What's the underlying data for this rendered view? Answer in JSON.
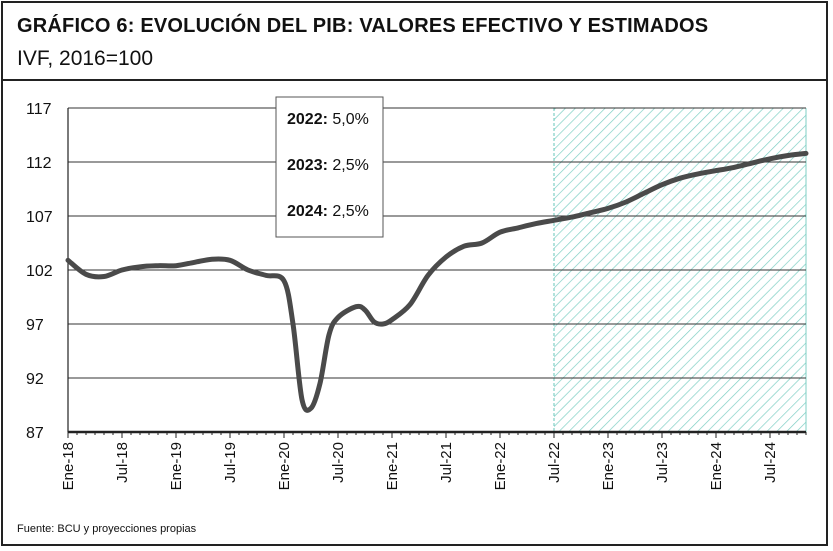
{
  "header": {
    "title": "GRÁFICO 6: EVOLUCIÓN DEL PIB: VALORES EFECTIVO Y ESTIMADOS",
    "subtitle": "IVF, 2016=100"
  },
  "footer": {
    "source": "Fuente: BCU y proyecciones propias"
  },
  "annotations": [
    {
      "year": "2022:",
      "value": "5,0%"
    },
    {
      "year": "2023:",
      "value": "2,5%"
    },
    {
      "year": "2024:",
      "value": "2,5%"
    }
  ],
  "colors": {
    "line": "#4a4a4a",
    "hatch": "#7fcfc4",
    "grid": "#333333"
  },
  "chart_data": {
    "type": "line",
    "title": "",
    "xlabel": "",
    "ylabel": "",
    "ylim": [
      87,
      117
    ],
    "yticks": [
      87,
      92,
      97,
      102,
      107,
      112,
      117
    ],
    "xlim": [
      0,
      82
    ],
    "xticks": [
      {
        "pos": 0,
        "label": "Ene-18"
      },
      {
        "pos": 6,
        "label": "Jul-18"
      },
      {
        "pos": 12,
        "label": "Ene-19"
      },
      {
        "pos": 18,
        "label": "Jul-19"
      },
      {
        "pos": 24,
        "label": "Ene-20"
      },
      {
        "pos": 30,
        "label": "Jul-20"
      },
      {
        "pos": 36,
        "label": "Ene-21"
      },
      {
        "pos": 42,
        "label": "Jul-21"
      },
      {
        "pos": 48,
        "label": "Ene-22"
      },
      {
        "pos": 54,
        "label": "Jul-22"
      },
      {
        "pos": 60,
        "label": "Ene-23"
      },
      {
        "pos": 66,
        "label": "Jul-23"
      },
      {
        "pos": 72,
        "label": "Ene-24"
      },
      {
        "pos": 78,
        "label": "Jul-24"
      }
    ],
    "forecast_start": 54,
    "series": [
      {
        "x": [
          0,
          2,
          4,
          6,
          8,
          10,
          12,
          14,
          16,
          18,
          20,
          22,
          24,
          25,
          26,
          27,
          28,
          29,
          30,
          32,
          33,
          34,
          35,
          36,
          38,
          40,
          42,
          44,
          46,
          48,
          50,
          52,
          54,
          56,
          58,
          60,
          62,
          64,
          66,
          68,
          70,
          72,
          74,
          76,
          78,
          80,
          82
        ],
        "y": [
          102.9,
          101.6,
          101.4,
          102.0,
          102.3,
          102.4,
          102.4,
          102.7,
          103.0,
          102.9,
          102.0,
          101.5,
          101.0,
          97.0,
          90.0,
          89.2,
          91.5,
          96.0,
          97.6,
          98.6,
          98.3,
          97.2,
          97.0,
          97.4,
          98.8,
          101.5,
          103.2,
          104.2,
          104.5,
          105.5,
          105.9,
          106.3,
          106.6,
          106.9,
          107.3,
          107.7,
          108.3,
          109.1,
          109.9,
          110.5,
          110.9,
          111.2,
          111.5,
          111.9,
          112.3,
          112.6,
          112.8
        ]
      }
    ]
  }
}
